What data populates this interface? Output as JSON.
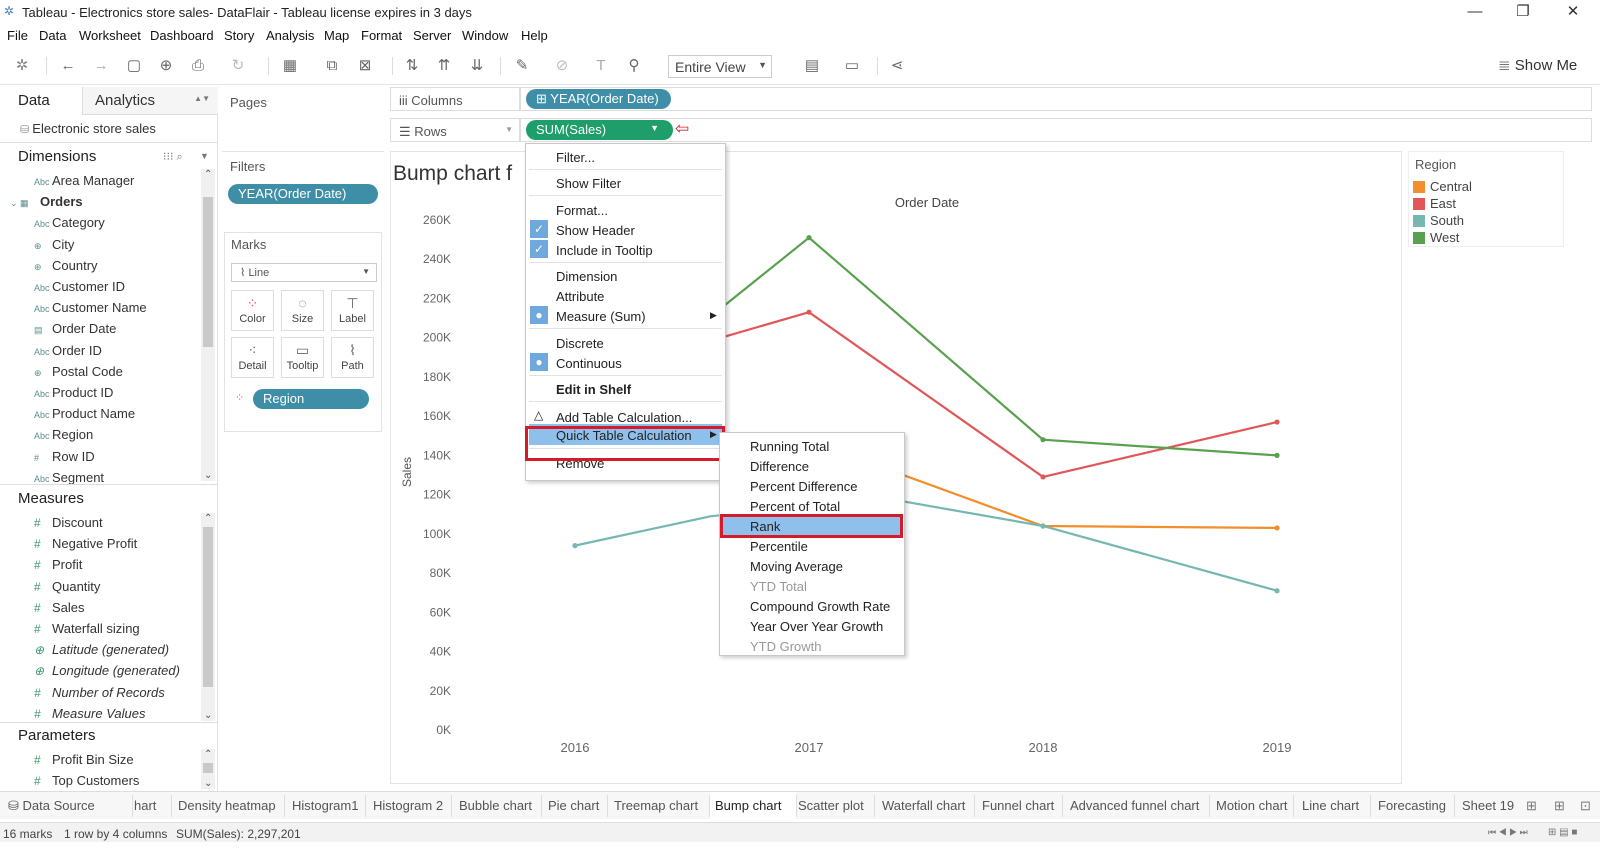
{
  "window": {
    "title": "Tableau - Electronics store sales- DataFlair - Tableau license expires in 3 days"
  },
  "menubar": [
    "File",
    "Data",
    "Worksheet",
    "Dashboard",
    "Story",
    "Analysis",
    "Map",
    "Format",
    "Server",
    "Window",
    "Help"
  ],
  "toolbar": {
    "fit": "Entire View",
    "show_me": "Show Me"
  },
  "data_pane": {
    "tab_data": "Data",
    "tab_analytics": "Analytics",
    "datasource": "Electronic store sales",
    "dimensions_header": "Dimensions",
    "dimensions": [
      {
        "type": "Abc",
        "name": "Area Manager"
      },
      {
        "type": "folder",
        "name": "Orders"
      },
      {
        "type": "Abc",
        "name": "Category"
      },
      {
        "type": "geo",
        "name": "City"
      },
      {
        "type": "geo",
        "name": "Country"
      },
      {
        "type": "Abc",
        "name": "Customer ID"
      },
      {
        "type": "Abc",
        "name": "Customer Name"
      },
      {
        "type": "date",
        "name": "Order Date"
      },
      {
        "type": "Abc",
        "name": "Order ID"
      },
      {
        "type": "geo",
        "name": "Postal Code"
      },
      {
        "type": "Abc",
        "name": "Product ID"
      },
      {
        "type": "Abc",
        "name": "Product Name"
      },
      {
        "type": "Abc",
        "name": "Region"
      },
      {
        "type": "#",
        "name": "Row ID"
      },
      {
        "type": "Abc",
        "name": "Segment"
      }
    ],
    "measures_header": "Measures",
    "measures": [
      {
        "type": "#",
        "name": "Discount"
      },
      {
        "type": "#",
        "name": "Negative Profit"
      },
      {
        "type": "#",
        "name": "Profit"
      },
      {
        "type": "#",
        "name": "Quantity"
      },
      {
        "type": "#",
        "name": "Sales"
      },
      {
        "type": "#",
        "name": "Waterfall sizing"
      },
      {
        "type": "geo",
        "name": "Latitude (generated)"
      },
      {
        "type": "geo",
        "name": "Longitude (generated)"
      },
      {
        "type": "#",
        "name": "Number of Records"
      },
      {
        "type": "#",
        "name": "Measure Values"
      }
    ],
    "parameters_header": "Parameters",
    "parameters": [
      {
        "type": "#",
        "name": "Profit Bin Size"
      },
      {
        "type": "#",
        "name": "Top Customers"
      }
    ]
  },
  "cards": {
    "pages": "Pages",
    "filters": "Filters",
    "filter_pill": "YEAR(Order Date)",
    "marks": "Marks",
    "mark_type": "Line",
    "mark_buttons": [
      "Color",
      "Size",
      "Label",
      "Detail",
      "Tooltip",
      "Path"
    ],
    "marks_pill": "Region"
  },
  "shelves": {
    "columns_label": "Columns",
    "columns_pill": "YEAR(Order Date)",
    "rows_label": "Rows",
    "rows_pill": "SUM(Sales)"
  },
  "view": {
    "title": "Bump chart f",
    "header": "Order Date"
  },
  "legend": {
    "title": "Region",
    "items": [
      {
        "name": "Central",
        "color": "#f28e2b"
      },
      {
        "name": "East",
        "color": "#e15759"
      },
      {
        "name": "South",
        "color": "#76b7b2"
      },
      {
        "name": "West",
        "color": "#59a14f"
      }
    ]
  },
  "chart_data": {
    "type": "line",
    "x": [
      "2016",
      "2017",
      "2018",
      "2019"
    ],
    "xlabel": "",
    "ylabel": "Sales",
    "y_ticks": [
      "0K",
      "20K",
      "40K",
      "60K",
      "80K",
      "100K",
      "120K",
      "140K",
      "160K",
      "180K",
      "200K",
      "220K",
      "240K",
      "260K"
    ],
    "ylim": [
      0,
      260000
    ],
    "series": [
      {
        "name": "Central",
        "color": "#f28e2b",
        "values": [
          null,
          null,
          104000,
          103000
        ]
      },
      {
        "name": "East",
        "color": "#e15759",
        "values": [
          null,
          213000,
          129000,
          157000
        ]
      },
      {
        "name": "South",
        "color": "#76b7b2",
        "values": [
          94000,
          null,
          104000,
          71000
        ]
      },
      {
        "name": "West",
        "color": "#59a14f",
        "values": [
          null,
          251000,
          148000,
          140000
        ]
      }
    ]
  },
  "context_menu": {
    "items": [
      "Filter...",
      "Show Filter",
      "Format...",
      "Show Header",
      "Include in Tooltip",
      "Dimension",
      "Attribute",
      "Measure (Sum)",
      "Discrete",
      "Continuous",
      "Edit in Shelf",
      "Add Table Calculation...",
      "Quick Table Calculation",
      "Remove"
    ]
  },
  "submenu": {
    "items": [
      "Running Total",
      "Difference",
      "Percent Difference",
      "Percent of Total",
      "Rank",
      "Percentile",
      "Moving Average",
      "YTD Total",
      "Compound Growth Rate",
      "Year Over Year Growth",
      "YTD Growth"
    ]
  },
  "sheet_tabs": [
    "Data Source",
    "hart",
    "Density heatmap",
    "Histogram1",
    "Histogram 2",
    "Bubble chart",
    "Pie chart",
    "Treemap chart",
    "Bump chart",
    "Scatter plot",
    "Waterfall chart",
    "Funnel chart",
    "Advanced funnel chart",
    "Motion chart",
    "Line chart",
    "Forecasting",
    "Sheet 19"
  ],
  "status": {
    "marks": "16 marks",
    "rows": "1 row by 4 columns",
    "sum": "SUM(Sales): 2,297,201"
  }
}
